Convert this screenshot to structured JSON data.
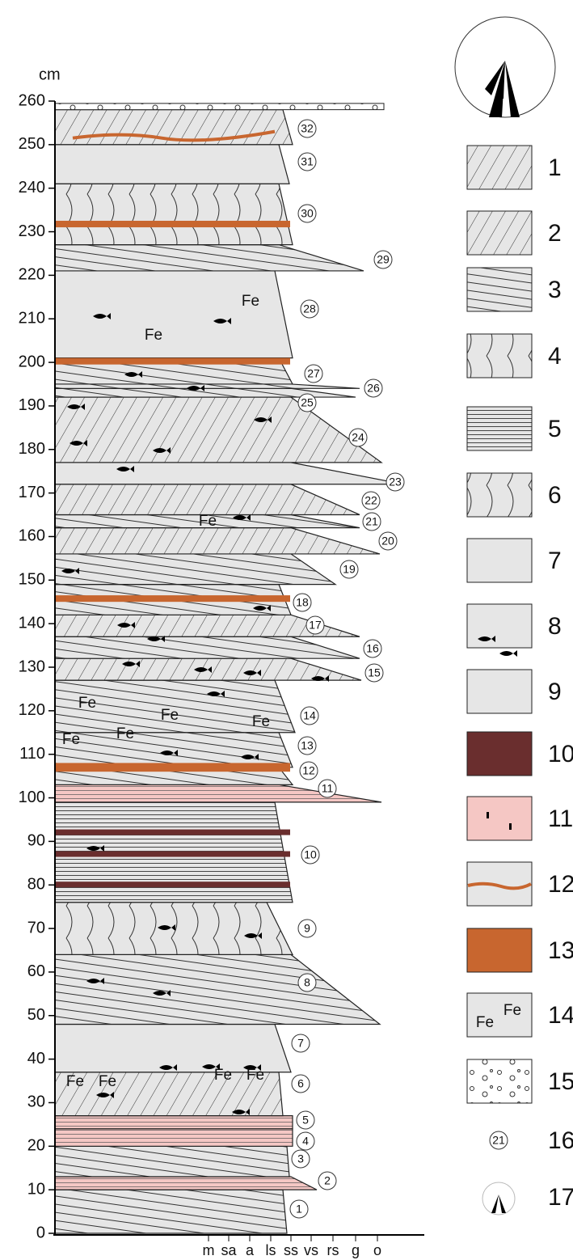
{
  "axis": {
    "unit": "cm",
    "ticks": [
      0,
      10,
      20,
      30,
      40,
      50,
      60,
      70,
      80,
      90,
      100,
      110,
      120,
      130,
      140,
      150,
      160,
      170,
      180,
      190,
      200,
      210,
      220,
      230,
      240,
      250,
      260
    ],
    "grain_size": [
      "m",
      "sa",
      "a",
      "ls",
      "ss",
      "vs",
      "rs",
      "g",
      "o"
    ]
  },
  "beds": [
    "1",
    "2",
    "3",
    "4",
    "5",
    "6",
    "7",
    "8",
    "9",
    "10",
    "11",
    "12",
    "13",
    "14",
    "15",
    "16",
    "17",
    "18",
    "19",
    "20",
    "21",
    "22",
    "23",
    "24",
    "25",
    "26",
    "27",
    "28",
    "29",
    "30",
    "31",
    "32"
  ],
  "fe_labels": [
    "Fe",
    "Fe",
    "Fe",
    "Fe",
    "Fe",
    "Fe",
    "Fe",
    "Fe",
    "Fe",
    "Fe",
    "Fe",
    "Fe"
  ],
  "legend": [
    "1",
    "2",
    "3",
    "4",
    "5",
    "6",
    "7",
    "8",
    "9",
    "10",
    "11",
    "12",
    "13",
    "14",
    "15",
    "16",
    "17"
  ],
  "legend_samples": {
    "fe": [
      "Fe",
      "Fe"
    ],
    "bed_number": "21"
  }
}
